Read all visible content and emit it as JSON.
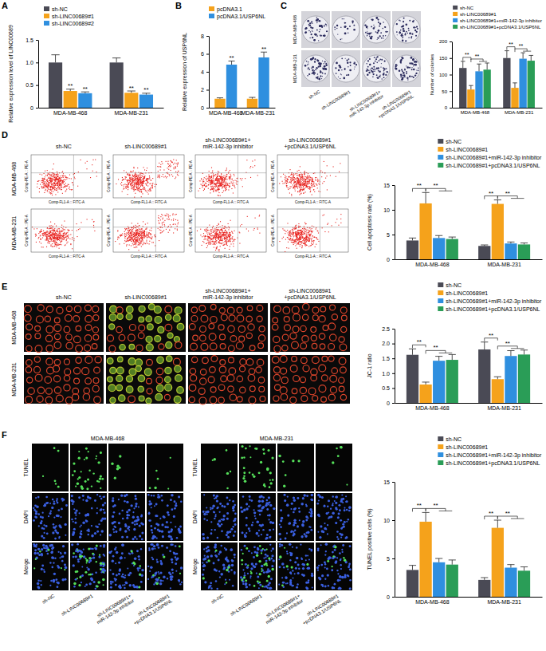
{
  "panel_labels": [
    "A",
    "B",
    "C",
    "D",
    "E",
    "F"
  ],
  "chart_data": [
    {
      "type": "bar",
      "ylabel": "Relative expression level of LINC00689",
      "categories": [
        "MDA-MB-468",
        "MDA-MB-231"
      ],
      "series": [
        {
          "name": "sh-NC",
          "color": "#4a4a55",
          "values": [
            1.0,
            1.0
          ],
          "errors": [
            0.17,
            0.1
          ]
        },
        {
          "name": "sh-LINC00689#1",
          "color": "#f5a21b",
          "values": [
            0.37,
            0.33
          ],
          "errors": [
            0.04,
            0.04
          ]
        },
        {
          "name": "sh-LINC00689#2",
          "color": "#2f8fdf",
          "values": [
            0.32,
            0.29
          ],
          "errors": [
            0.03,
            0.03
          ]
        }
      ],
      "ylim": [
        0,
        1.5
      ],
      "yticks": [
        0,
        0.5,
        {
          "value": 1,
          "label": "1.0"
        },
        1.5
      ],
      "grid": false,
      "legend": "top-left",
      "annotations": [
        {
          "text": "**",
          "category": 0,
          "series": [
            1
          ]
        },
        {
          "text": "**",
          "category": 0,
          "series": [
            2
          ]
        },
        {
          "text": "**",
          "category": 1,
          "series": [
            1
          ]
        },
        {
          "text": "**",
          "category": 1,
          "series": [
            2
          ]
        }
      ]
    },
    {
      "type": "bar",
      "ylabel": "Relative expression of USP6NL",
      "categories": [
        "MDA-MB-468",
        "MDA-MB-231"
      ],
      "series": [
        {
          "name": "pcDNA3.1",
          "color": "#f5a21b",
          "values": [
            1.0,
            1.0
          ],
          "errors": [
            0.1,
            0.15
          ]
        },
        {
          "name": "pcDNA3.1/USP6NL",
          "color": "#2f8fdf",
          "values": [
            4.8,
            5.6
          ],
          "errors": [
            0.4,
            0.6
          ]
        }
      ],
      "ylim": [
        0,
        8
      ],
      "yticks": [
        0,
        2,
        4,
        6,
        8
      ],
      "grid": false,
      "legend": "top-left",
      "annotations": [
        {
          "text": "**",
          "category": 0,
          "series": [
            1
          ]
        },
        {
          "text": "**",
          "category": 1,
          "series": [
            1
          ]
        }
      ]
    },
    {
      "type": "bar",
      "ylabel": "Number of colonies",
      "categories": [
        "MDA-MB-468",
        "MDA-MB-231"
      ],
      "series": [
        {
          "name": "sh-NC",
          "color": "#4a4a55",
          "values": [
            120,
            150
          ],
          "errors": [
            20,
            22
          ]
        },
        {
          "name": "sh-LINC00689#1",
          "color": "#f5a21b",
          "values": [
            55,
            60
          ],
          "errors": [
            12,
            15
          ]
        },
        {
          "name": "sh-LINC00689#1+miR-142-3p inhibitor",
          "color": "#2f8fdf",
          "values": [
            110,
            148
          ],
          "errors": [
            22,
            18
          ]
        },
        {
          "name": "sh-LINC00689#1+pcDNA3.1/USP6NL",
          "color": "#2a9d57",
          "values": [
            115,
            142
          ],
          "errors": [
            20,
            16
          ]
        }
      ],
      "ylim": [
        0,
        200
      ],
      "yticks": [
        0,
        50,
        100,
        150,
        200
      ],
      "grid": false,
      "legend": "top-right",
      "annotations": [
        {
          "text": "**",
          "category": 0,
          "series": [
            0,
            1
          ]
        },
        {
          "text": "**",
          "category": 0,
          "series": [
            1,
            2,
            3
          ]
        },
        {
          "text": "**",
          "category": 1,
          "series": [
            0,
            1
          ]
        },
        {
          "text": "**",
          "category": 1,
          "series": [
            1,
            2,
            3
          ]
        }
      ]
    },
    {
      "type": "bar",
      "ylabel": "Cell apoptosis rate (%)",
      "categories": [
        "MDA-MB-468",
        "MDA-MB-231"
      ],
      "series": [
        {
          "name": "sh-NC",
          "color": "#4a4a55",
          "values": [
            3.8,
            2.7
          ],
          "errors": [
            0.5,
            0.2
          ]
        },
        {
          "name": "sh-LINC00689#1",
          "color": "#f5a21b",
          "values": [
            11.3,
            11.2
          ],
          "errors": [
            2.2,
            0.8
          ]
        },
        {
          "name": "sh-LINC00689#1+miR-142-3p inhibitor",
          "color": "#2f8fdf",
          "values": [
            4.3,
            3.2
          ],
          "errors": [
            0.5,
            0.3
          ]
        },
        {
          "name": "sh-LINC00689#1+pcDNA3.1/USP6NL",
          "color": "#2a9d57",
          "values": [
            4.1,
            3.0
          ],
          "errors": [
            0.4,
            0.3
          ]
        }
      ],
      "ylim": [
        0,
        15
      ],
      "yticks": [
        0,
        5,
        10,
        15
      ],
      "grid": false,
      "legend": "top-right",
      "annotations": [
        {
          "text": "**",
          "category": 0,
          "series": [
            0,
            1
          ]
        },
        {
          "text": "**",
          "category": 0,
          "series": [
            1,
            2,
            3
          ]
        },
        {
          "text": "**",
          "category": 1,
          "series": [
            0,
            1
          ]
        },
        {
          "text": "**",
          "category": 1,
          "series": [
            1,
            2,
            3
          ]
        }
      ]
    },
    {
      "type": "bar",
      "ylabel": "JC-1 ratio",
      "categories": [
        "MDA-MB-468",
        "MDA-MB-231"
      ],
      "series": [
        {
          "name": "sh-NC",
          "color": "#4a4a55",
          "values": [
            1.62,
            1.8
          ],
          "errors": [
            0.2,
            0.25
          ]
        },
        {
          "name": "sh-LINC00689#1",
          "color": "#f5a21b",
          "values": [
            0.62,
            0.8
          ],
          "errors": [
            0.08,
            0.08
          ]
        },
        {
          "name": "sh-LINC00689#1+miR-142-3p inhibitor",
          "color": "#2f8fdf",
          "values": [
            1.42,
            1.58
          ],
          "errors": [
            0.15,
            0.18
          ]
        },
        {
          "name": "sh-LINC00689#1+pcDNA3.1/USP6NL",
          "color": "#2a9d57",
          "values": [
            1.45,
            1.63
          ],
          "errors": [
            0.18,
            0.15
          ]
        }
      ],
      "ylim": [
        0,
        2.5
      ],
      "yticks": [
        0,
        0.5,
        {
          "value": 1,
          "label": "1.0"
        },
        1.5,
        {
          "value": 2,
          "label": "2.0"
        },
        2.5
      ],
      "grid": false,
      "legend": "top-right",
      "annotations": [
        {
          "text": "**",
          "category": 0,
          "series": [
            0,
            1
          ]
        },
        {
          "text": "**",
          "category": 0,
          "series": [
            1,
            2,
            3
          ]
        },
        {
          "text": "**",
          "category": 1,
          "series": [
            0,
            1
          ]
        },
        {
          "text": "**",
          "category": 1,
          "series": [
            1,
            2,
            3
          ]
        }
      ]
    },
    {
      "type": "bar",
      "ylabel": "TUNEL positive cells (%)",
      "categories": [
        "MDA-MB-468",
        "MDA-MB-231"
      ],
      "series": [
        {
          "name": "sh-NC",
          "color": "#4a4a55",
          "values": [
            3.5,
            2.2
          ],
          "errors": [
            0.6,
            0.3
          ]
        },
        {
          "name": "sh-LINC00689#1",
          "color": "#f5a21b",
          "values": [
            9.8,
            9.0
          ],
          "errors": [
            1.2,
            1.0
          ]
        },
        {
          "name": "sh-LINC00689#1+miR-142-3p inhibitor",
          "color": "#2f8fdf",
          "values": [
            4.5,
            3.8
          ],
          "errors": [
            0.5,
            0.4
          ]
        },
        {
          "name": "sh-LINC00689#1+pcDNA3.1/USP6NL",
          "color": "#2a9d57",
          "values": [
            4.2,
            3.4
          ],
          "errors": [
            0.6,
            0.5
          ]
        }
      ],
      "ylim": [
        0,
        15
      ],
      "yticks": [
        0,
        5,
        10,
        15
      ],
      "grid": false,
      "legend": "top-right",
      "annotations": [
        {
          "text": "**",
          "category": 0,
          "series": [
            0,
            1
          ]
        },
        {
          "text": "**",
          "category": 0,
          "series": [
            1,
            2,
            3
          ]
        },
        {
          "text": "**",
          "category": 1,
          "series": [
            0,
            1
          ]
        },
        {
          "text": "**",
          "category": 1,
          "series": [
            1,
            2,
            3
          ]
        }
      ]
    }
  ],
  "image_panels": [
    {
      "rows": [
        "MDA-MB-468",
        "MDA-MB-231"
      ],
      "columns": [
        [
          "sh-NC"
        ],
        [
          "sh-LINC00689#1"
        ],
        [
          "sh-LINC00689#1+",
          "miR-142-3p inhibitor"
        ],
        [
          "sh-LINC00689#1",
          "+pcDNA3.1/USP6NL"
        ]
      ]
    },
    {
      "rows": [
        "MDA-MB-468",
        "MDA-MB-231"
      ],
      "columns": [
        [
          "sh-NC"
        ],
        [
          "sh-LINC00689#1"
        ],
        [
          "sh-LINC00689#1+",
          "miR-142-3p inhibitor"
        ],
        [
          "sh-LINC00689#1",
          "+pcDNA3.1/USP6NL"
        ]
      ],
      "axis_labels": [
        "Comp-FL1-A :: FITC-A",
        "Comp-PE-A :: PE-A"
      ]
    },
    {
      "rows": [
        "MDA-MB-468",
        "MDA-MB-231"
      ],
      "columns": [
        [
          "sh-NC"
        ],
        [
          "sh-LINC00689#1"
        ],
        [
          "sh-LINC00689#1+",
          "miR-142-3p inhibitor"
        ],
        [
          "sh-LINC00689#1",
          "+pcDNA3.1/USP6NL"
        ]
      ]
    },
    {
      "groups": [
        "MDA-MB-468",
        "MDA-MB-231"
      ],
      "rows": [
        "TUNEL",
        "DAPI",
        "Merge"
      ],
      "columns": [
        [
          "sh-NC"
        ],
        [
          "sh-LINC00689#1"
        ],
        [
          "sh-LINC00689#1+",
          "miR-142-3p inhibitor"
        ],
        [
          "sh-LINC00689#1",
          "+pcDNA3.1/USP6NL"
        ]
      ]
    }
  ]
}
